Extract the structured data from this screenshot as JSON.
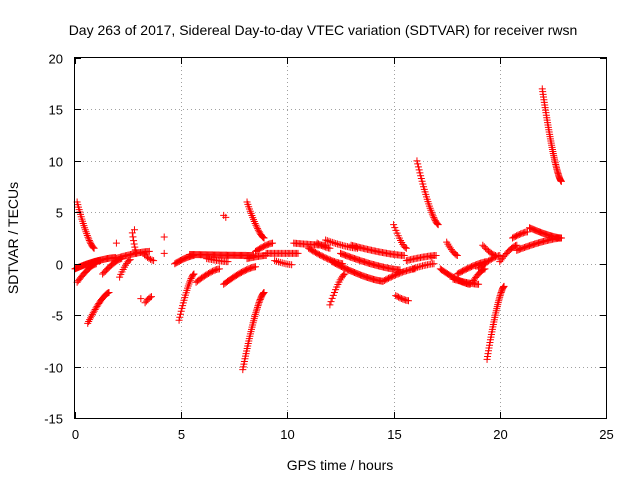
{
  "chart_data": {
    "type": "scatter",
    "title": "Day 263 of 2017, Sidereal Day-to-day VTEC variation (SDTVAR) for receiver rwsn",
    "xlabel": "GPS time / hours",
    "ylabel": "SDTVAR / TECUs",
    "xlim": [
      0,
      25
    ],
    "ylim": [
      -15,
      20
    ],
    "xticks": [
      0,
      5,
      10,
      15,
      20,
      25
    ],
    "yticks": [
      -15,
      -10,
      -5,
      0,
      5,
      10,
      15,
      20
    ],
    "xtick_labels": [
      "0",
      "5",
      "10",
      "15",
      "20",
      "25"
    ],
    "ytick_labels": [
      "-15",
      "-10",
      "-5",
      "0",
      "5",
      "10",
      "15",
      "20"
    ],
    "grid": true,
    "marker": "+",
    "color": "#ff0000",
    "tracks": [
      {
        "x0": 0.1,
        "x1": 0.9,
        "y0": 6.0,
        "y1": 1.5,
        "n": 26
      },
      {
        "x0": 0.0,
        "x1": 1.2,
        "y0": -0.5,
        "y1": 0.3,
        "n": 34
      },
      {
        "x0": 0.1,
        "x1": 1.0,
        "y0": -1.8,
        "y1": 0.0,
        "n": 18
      },
      {
        "x0": 0.6,
        "x1": 1.6,
        "y0": -5.8,
        "y1": -2.8,
        "n": 24
      },
      {
        "x0": 0.9,
        "x1": 1.9,
        "y0": 0.2,
        "y1": 0.6,
        "n": 20
      },
      {
        "x0": 1.3,
        "x1": 2.2,
        "y0": -1.0,
        "y1": 0.5,
        "n": 16
      },
      {
        "x0": 1.9,
        "x1": 3.5,
        "y0": 0.5,
        "y1": 1.2,
        "n": 28
      },
      {
        "x0": 2.1,
        "x1": 2.6,
        "y0": -1.3,
        "y1": 0.4,
        "n": 10
      },
      {
        "x0": 2.7,
        "x1": 2.9,
        "y0": 3.0,
        "y1": 1.0,
        "n": 8
      },
      {
        "x0": 3.3,
        "x1": 3.6,
        "y0": -3.8,
        "y1": -3.2,
        "n": 6
      },
      {
        "x0": 3.2,
        "x1": 3.7,
        "y0": 1.0,
        "y1": 0.3,
        "n": 8
      },
      {
        "x0": 4.7,
        "x1": 5.6,
        "y0": 0.0,
        "y1": 0.8,
        "n": 18
      },
      {
        "x0": 4.9,
        "x1": 5.6,
        "y0": -5.5,
        "y1": -1.0,
        "n": 22
      },
      {
        "x0": 5.4,
        "x1": 8.4,
        "y0": 0.9,
        "y1": 0.8,
        "n": 60
      },
      {
        "x0": 5.7,
        "x1": 6.8,
        "y0": -1.8,
        "y1": -0.5,
        "n": 18
      },
      {
        "x0": 6.2,
        "x1": 7.2,
        "y0": 0.5,
        "y1": 0.2,
        "n": 14
      },
      {
        "x0": 7.0,
        "x1": 8.5,
        "y0": -2.0,
        "y1": -0.3,
        "n": 26
      },
      {
        "x0": 7.9,
        "x1": 8.9,
        "y0": -10.3,
        "y1": -2.8,
        "n": 40
      },
      {
        "x0": 8.1,
        "x1": 8.9,
        "y0": 6.0,
        "y1": 2.5,
        "n": 22
      },
      {
        "x0": 8.1,
        "x1": 9.0,
        "y0": 0.5,
        "y1": 0.8,
        "n": 16
      },
      {
        "x0": 8.5,
        "x1": 9.3,
        "y0": 1.2,
        "y1": 2.0,
        "n": 14
      },
      {
        "x0": 9.0,
        "x1": 10.5,
        "y0": 1.0,
        "y1": 1.0,
        "n": 24
      },
      {
        "x0": 9.4,
        "x1": 10.2,
        "y0": 0.3,
        "y1": -0.1,
        "n": 10
      },
      {
        "x0": 10.3,
        "x1": 11.8,
        "y0": 2.0,
        "y1": 1.8,
        "n": 24
      },
      {
        "x0": 11.0,
        "x1": 12.6,
        "y0": 1.5,
        "y1": 0.0,
        "n": 26
      },
      {
        "x0": 11.4,
        "x1": 12.0,
        "y0": 2.0,
        "y1": 1.5,
        "n": 10
      },
      {
        "x0": 11.8,
        "x1": 13.3,
        "y0": 2.3,
        "y1": 1.5,
        "n": 20
      },
      {
        "x0": 12.0,
        "x1": 12.7,
        "y0": -4.0,
        "y1": -1.0,
        "n": 14
      },
      {
        "x0": 12.1,
        "x1": 14.5,
        "y0": 0.2,
        "y1": -1.7,
        "n": 44
      },
      {
        "x0": 12.5,
        "x1": 15.3,
        "y0": 1.0,
        "y1": -0.6,
        "n": 48
      },
      {
        "x0": 13.0,
        "x1": 15.5,
        "y0": 1.8,
        "y1": 0.8,
        "n": 40
      },
      {
        "x0": 14.5,
        "x1": 16.0,
        "y0": -1.7,
        "y1": -0.5,
        "n": 24
      },
      {
        "x0": 15.0,
        "x1": 15.6,
        "y0": 3.8,
        "y1": 1.5,
        "n": 12
      },
      {
        "x0": 15.1,
        "x1": 15.7,
        "y0": -3.1,
        "y1": -3.6,
        "n": 10
      },
      {
        "x0": 15.6,
        "x1": 17.0,
        "y0": 0.3,
        "y1": 0.8,
        "n": 22
      },
      {
        "x0": 15.9,
        "x1": 16.9,
        "y0": -0.5,
        "y1": 0.0,
        "n": 14
      },
      {
        "x0": 16.1,
        "x1": 17.1,
        "y0": 10.0,
        "y1": 3.8,
        "n": 30
      },
      {
        "x0": 17.2,
        "x1": 18.6,
        "y0": -0.5,
        "y1": -2.0,
        "n": 26
      },
      {
        "x0": 17.5,
        "x1": 18.0,
        "y0": 2.1,
        "y1": 0.8,
        "n": 10
      },
      {
        "x0": 17.8,
        "x1": 19.0,
        "y0": -1.5,
        "y1": -2.0,
        "n": 20
      },
      {
        "x0": 18.0,
        "x1": 19.4,
        "y0": -1.0,
        "y1": 0.2,
        "n": 24
      },
      {
        "x0": 18.7,
        "x1": 19.3,
        "y0": -1.8,
        "y1": -0.5,
        "n": 12
      },
      {
        "x0": 19.0,
        "x1": 20.0,
        "y0": -0.5,
        "y1": 0.8,
        "n": 16
      },
      {
        "x0": 19.4,
        "x1": 20.2,
        "y0": -9.3,
        "y1": -2.2,
        "n": 36
      },
      {
        "x0": 19.2,
        "x1": 19.8,
        "y0": 1.8,
        "y1": 0.8,
        "n": 10
      },
      {
        "x0": 20.0,
        "x1": 20.8,
        "y0": 0.2,
        "y1": 1.8,
        "n": 14
      },
      {
        "x0": 20.6,
        "x1": 21.3,
        "y0": 2.5,
        "y1": 3.1,
        "n": 12
      },
      {
        "x0": 20.8,
        "x1": 22.9,
        "y0": 1.3,
        "y1": 2.5,
        "n": 36
      },
      {
        "x0": 21.4,
        "x1": 22.9,
        "y0": 3.5,
        "y1": 2.5,
        "n": 30
      },
      {
        "x0": 22.0,
        "x1": 22.9,
        "y0": 17.0,
        "y1": 8.0,
        "n": 48
      }
    ],
    "points": [
      {
        "x": 4.2,
        "y": 2.6
      },
      {
        "x": 4.2,
        "y": 1.0
      },
      {
        "x": 3.1,
        "y": -3.4
      },
      {
        "x": 7.0,
        "y": 4.7
      },
      {
        "x": 7.1,
        "y": 4.5
      },
      {
        "x": 1.95,
        "y": 2.0
      },
      {
        "x": 2.8,
        "y": 3.3
      },
      {
        "x": 16.8,
        "y": 0.6
      }
    ]
  }
}
